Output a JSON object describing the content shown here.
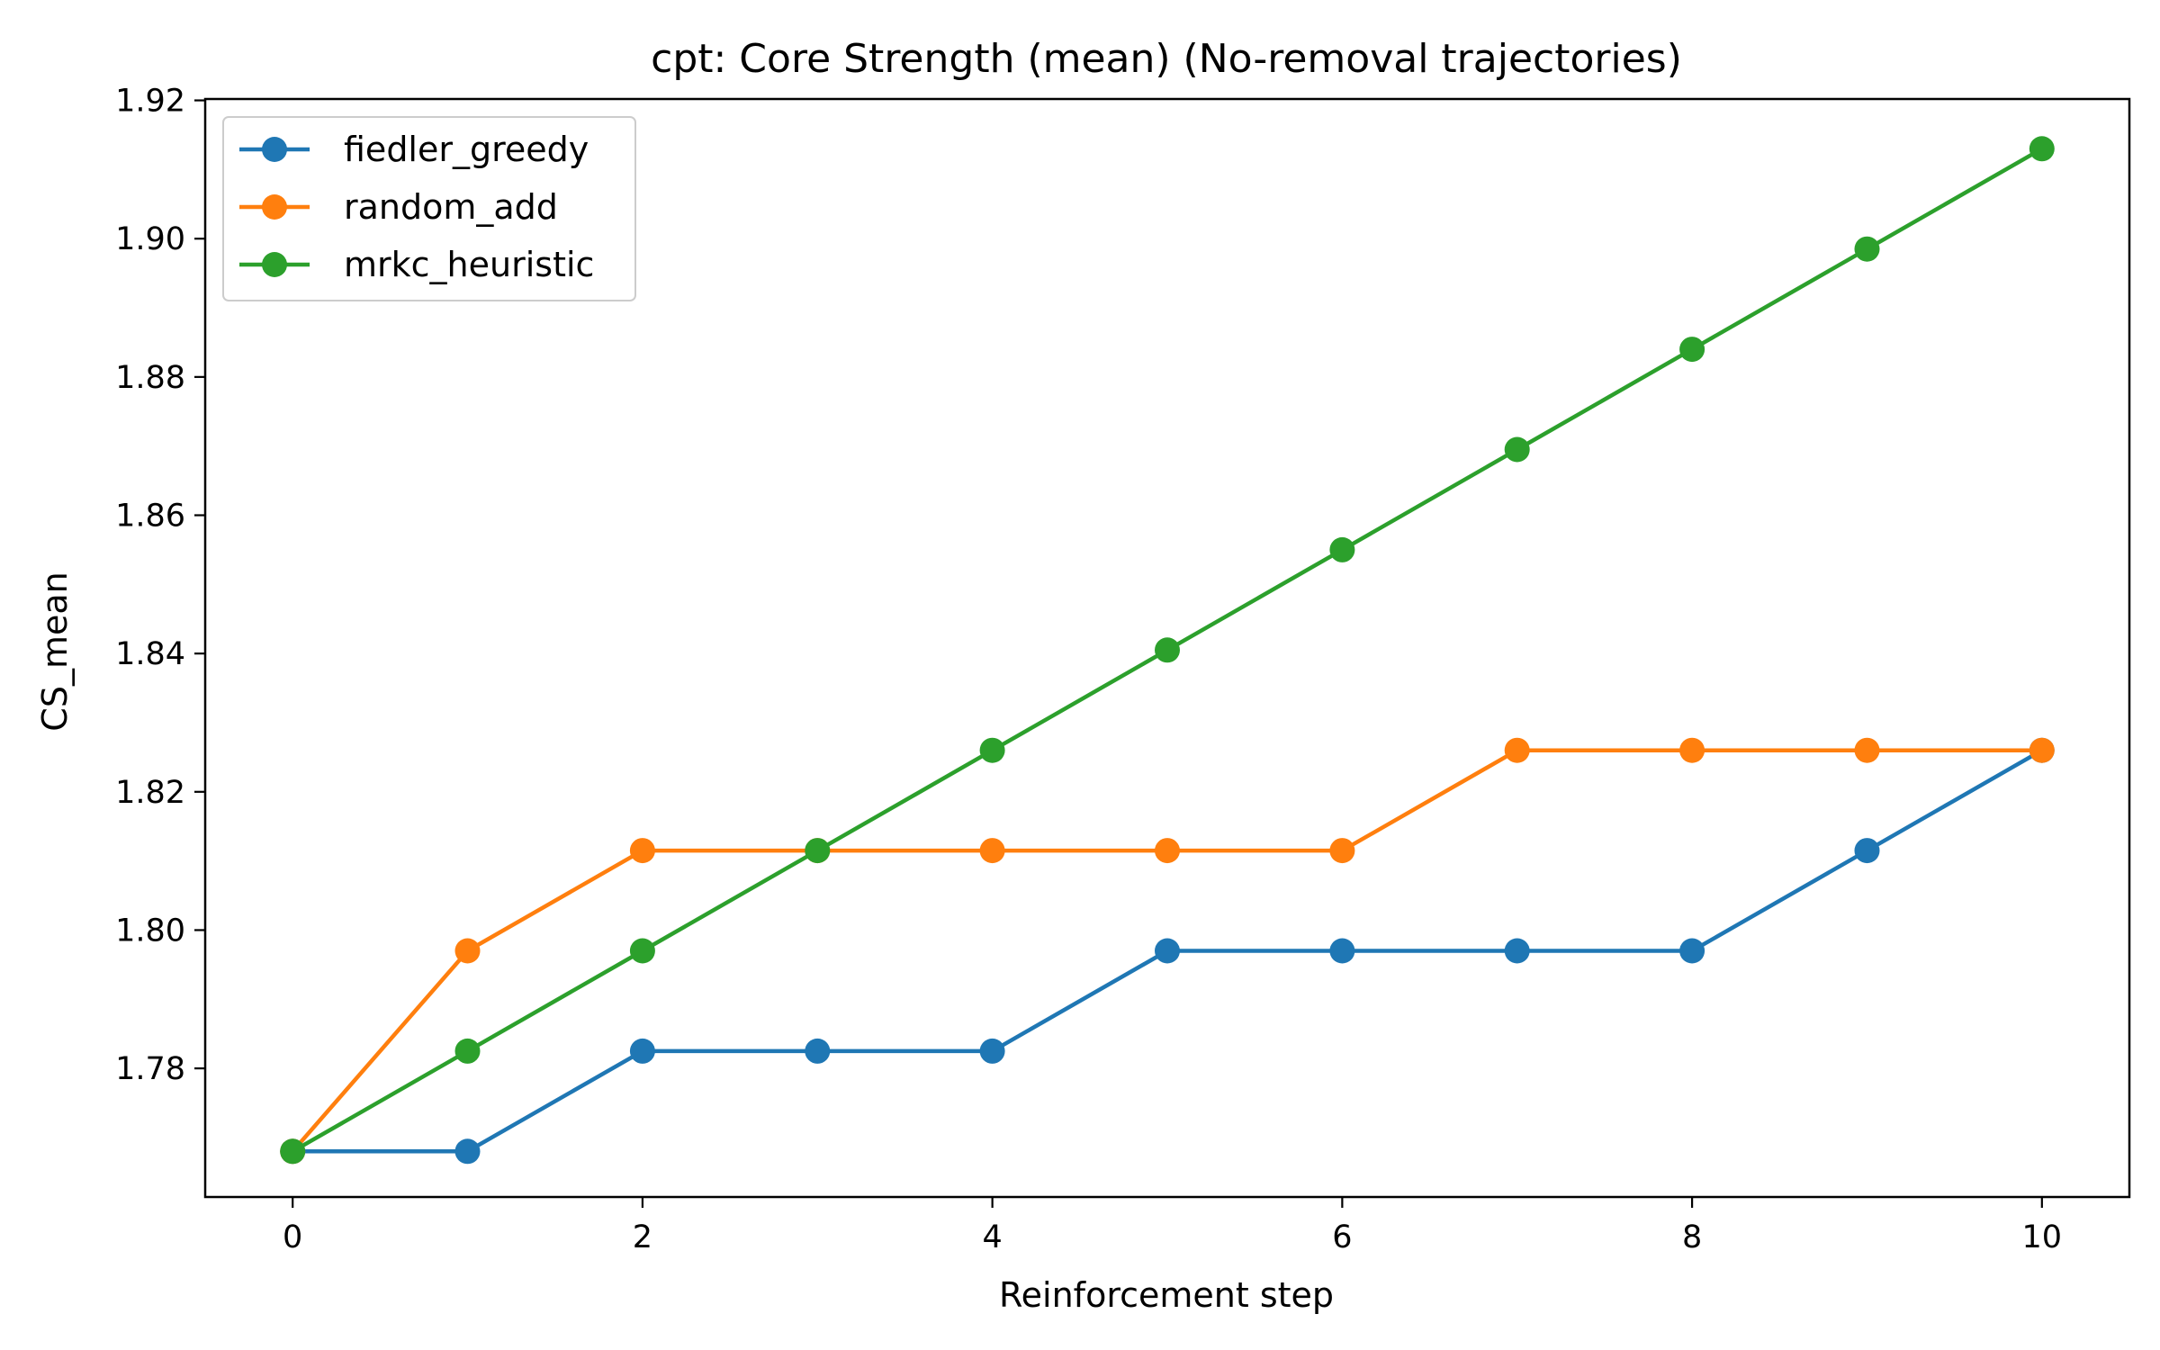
{
  "chart_data": {
    "type": "line",
    "title": "cpt: Core Strength (mean) (No-removal trajectories)",
    "xlabel": "Reinforcement step",
    "ylabel": "CS_mean",
    "xlim": [
      -0.5,
      10.5
    ],
    "ylim": [
      1.7614,
      1.9202
    ],
    "xticks": [
      0,
      2,
      4,
      6,
      8,
      10
    ],
    "yticks": [
      1.78,
      1.8,
      1.82,
      1.84,
      1.86,
      1.88,
      1.9,
      1.92
    ],
    "ytick_labels": [
      "1.78",
      "1.80",
      "1.82",
      "1.84",
      "1.86",
      "1.88",
      "1.90",
      "1.92"
    ],
    "xtick_labels": [
      "0",
      "2",
      "4",
      "6",
      "8",
      "10"
    ],
    "grid": false,
    "legend_position": "top-left",
    "x": [
      0,
      1,
      2,
      3,
      4,
      5,
      6,
      7,
      8,
      9,
      10
    ],
    "series": [
      {
        "name": "fiedler_greedy",
        "color": "#1f77b4",
        "values": [
          1.768,
          1.768,
          1.7825,
          1.7825,
          1.7825,
          1.797,
          1.797,
          1.797,
          1.797,
          1.8115,
          1.826
        ]
      },
      {
        "name": "random_add",
        "color": "#ff7f0e",
        "values": [
          1.768,
          1.797,
          1.8115,
          1.8115,
          1.8115,
          1.8115,
          1.8115,
          1.826,
          1.826,
          1.826,
          1.826
        ]
      },
      {
        "name": "mrkc_heuristic",
        "color": "#2ca02c",
        "values": [
          1.768,
          1.7825,
          1.797,
          1.8115,
          1.826,
          1.8405,
          1.855,
          1.8695,
          1.884,
          1.8985,
          1.913
        ]
      }
    ]
  }
}
